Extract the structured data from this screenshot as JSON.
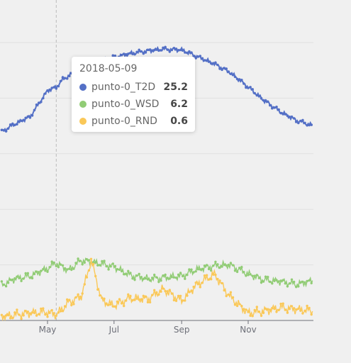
{
  "chart_data": {
    "type": "line",
    "title": "",
    "xlabel": "",
    "ylabel": "",
    "x_ticks": [
      "May",
      "Jul",
      "Sep",
      "Nov"
    ],
    "x_range": [
      "2018-03-20",
      "2018-12-31"
    ],
    "ylim": [
      0,
      30
    ],
    "grid": true,
    "pointer_date": "2018-05-09",
    "series": [
      {
        "name": "punto-0_T2D",
        "color": "#5470c6",
        "x": [
          "2018-03-20",
          "2018-04-01",
          "2018-04-15",
          "2018-05-01",
          "2018-05-09",
          "2018-05-15",
          "2018-06-01",
          "2018-06-15",
          "2018-07-01",
          "2018-07-15",
          "2018-08-01",
          "2018-08-15",
          "2018-09-01",
          "2018-09-15",
          "2018-10-01",
          "2018-10-15",
          "2018-11-01",
          "2018-11-15",
          "2018-12-01",
          "2018-12-15",
          "2018-12-31"
        ],
        "values": [
          20.4,
          21.2,
          22.0,
          24.8,
          25.2,
          26.0,
          27.3,
          27.9,
          28.4,
          28.8,
          29.1,
          29.3,
          29.2,
          28.5,
          27.7,
          26.8,
          25.2,
          23.8,
          22.5,
          21.6,
          21.0
        ]
      },
      {
        "name": "punto-0_WSD",
        "color": "#91cc75",
        "x": [
          "2018-03-20",
          "2018-04-01",
          "2018-04-15",
          "2018-05-01",
          "2018-05-09",
          "2018-05-20",
          "2018-06-01",
          "2018-06-10",
          "2018-06-20",
          "2018-07-01",
          "2018-07-15",
          "2018-08-01",
          "2018-08-15",
          "2018-09-01",
          "2018-09-15",
          "2018-10-01",
          "2018-10-15",
          "2018-11-01",
          "2018-11-15",
          "2018-12-01",
          "2018-12-15",
          "2018-12-31"
        ],
        "values": [
          3.8,
          4.5,
          4.8,
          5.6,
          6.2,
          5.4,
          6.5,
          6.3,
          6.1,
          5.8,
          4.9,
          4.5,
          4.6,
          4.8,
          5.5,
          5.9,
          6.0,
          5.0,
          4.4,
          4.2,
          3.9,
          4.3
        ]
      },
      {
        "name": "punto-0_RND",
        "color": "#fac858",
        "x": [
          "2018-03-20",
          "2018-04-01",
          "2018-04-15",
          "2018-05-01",
          "2018-05-09",
          "2018-05-20",
          "2018-06-01",
          "2018-06-10",
          "2018-06-20",
          "2018-07-01",
          "2018-07-15",
          "2018-08-01",
          "2018-08-15",
          "2018-09-01",
          "2018-09-15",
          "2018-10-01",
          "2018-10-15",
          "2018-11-01",
          "2018-11-15",
          "2018-12-01",
          "2018-12-15",
          "2018-12-31"
        ],
        "values": [
          0.4,
          0.6,
          0.8,
          0.9,
          0.6,
          1.9,
          2.6,
          6.5,
          2.1,
          1.6,
          2.4,
          2.3,
          3.4,
          2.1,
          3.9,
          5.0,
          2.6,
          0.8,
          1.0,
          1.4,
          1.2,
          1.0
        ]
      }
    ]
  },
  "tooltip": {
    "date": "2018-05-09",
    "rows": [
      {
        "name": "punto-0_T2D",
        "value": "25.2",
        "color": "#5470c6"
      },
      {
        "name": "punto-0_WSD",
        "value": "6.2",
        "color": "#91cc75"
      },
      {
        "name": "punto-0_RND",
        "value": "0.6",
        "color": "#fac858"
      }
    ]
  }
}
